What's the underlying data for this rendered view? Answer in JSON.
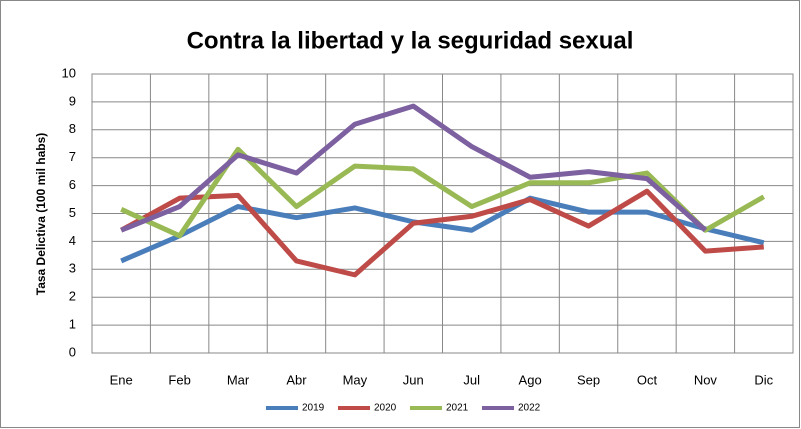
{
  "chart_data": {
    "type": "line",
    "title": "Contra la libertad y la seguridad sexual",
    "y_label": "Tasa Delictiva (100 mil habs)",
    "categories": [
      "Ene",
      "Feb",
      "Mar",
      "Abr",
      "May",
      "Jun",
      "Jul",
      "Ago",
      "Sep",
      "Oct",
      "Nov",
      "Dic"
    ],
    "series": [
      {
        "name": "2019",
        "color": "#4a7ebb",
        "values": [
          3.3,
          4.2,
          5.25,
          4.85,
          5.2,
          4.7,
          4.4,
          5.55,
          5.05,
          5.05,
          4.45,
          3.95
        ]
      },
      {
        "name": "2020",
        "color": "#be4b48",
        "values": [
          4.4,
          5.55,
          5.65,
          3.3,
          2.8,
          4.65,
          4.9,
          5.5,
          4.55,
          5.8,
          3.65,
          3.8
        ]
      },
      {
        "name": "2021",
        "color": "#98b954",
        "values": [
          5.15,
          4.2,
          7.3,
          5.25,
          6.7,
          6.6,
          5.25,
          6.1,
          6.1,
          6.45,
          4.4,
          5.6
        ]
      },
      {
        "name": "2022",
        "color": "#7d60a0",
        "values": [
          4.4,
          5.25,
          7.1,
          6.45,
          8.2,
          8.85,
          7.4,
          6.3,
          6.5,
          6.25,
          4.4,
          null
        ]
      }
    ],
    "ylim": [
      0,
      10
    ],
    "yticks": [
      0,
      1,
      2,
      3,
      4,
      5,
      6,
      7,
      8,
      9,
      10
    ],
    "grid": true,
    "legend": "bottom"
  }
}
